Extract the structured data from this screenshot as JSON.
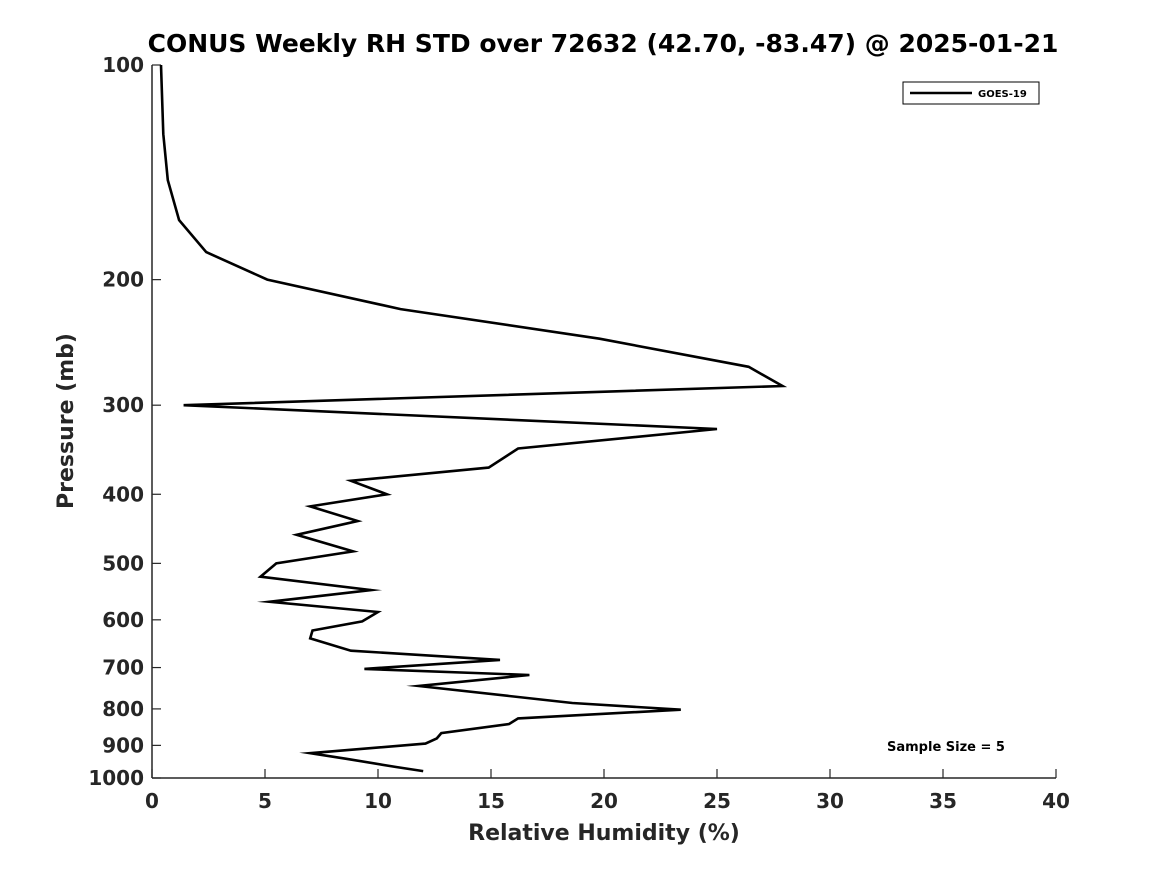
{
  "chart_data": {
    "type": "line",
    "title": "CONUS Weekly RH STD over 72632 (42.70, -83.47) @ 2025-01-21",
    "xlabel": "Relative Humidity (%)",
    "ylabel": "Pressure (mb)",
    "xlim": [
      0,
      40
    ],
    "ylim": [
      100,
      1000
    ],
    "yscale": "log",
    "y_reversed": true,
    "grid": false,
    "legend_position": "top-right",
    "x_ticks": [
      0,
      5,
      10,
      15,
      20,
      25,
      30,
      35,
      40
    ],
    "x_tick_labels": [
      "0",
      "5",
      "10",
      "15",
      "20",
      "25",
      "30",
      "35",
      "40"
    ],
    "y_ticks": [
      100,
      200,
      300,
      400,
      500,
      600,
      700,
      800,
      900,
      1000
    ],
    "y_tick_labels": [
      "100",
      "200",
      "300",
      "400",
      "500",
      "600",
      "700",
      "800",
      "900",
      "1000"
    ],
    "series": [
      {
        "name": "GOES-19",
        "color": "#000000",
        "x": [
          0.4,
          0.5,
          0.7,
          1.2,
          2.4,
          5.1,
          11.0,
          19.8,
          26.4,
          27.9,
          1.4,
          25.0,
          16.2,
          14.9,
          8.8,
          10.4,
          7.0,
          9.1,
          6.4,
          8.9,
          5.5,
          4.8,
          9.7,
          5.2,
          10.0,
          9.3,
          7.1,
          7.0,
          8.8,
          15.4,
          9.4,
          16.7,
          11.8,
          18.6,
          23.4,
          16.2,
          15.8,
          12.8,
          12.6,
          12.1,
          7.0,
          8.6,
          10.8,
          12.0
        ],
        "y": [
          100,
          125,
          145,
          165,
          183,
          200,
          220,
          242,
          265,
          282,
          300,
          324,
          345,
          367,
          383,
          400,
          416,
          436,
          456,
          481,
          500,
          522,
          545,
          566,
          585,
          603,
          621,
          637,
          663,
          683,
          703,
          717,
          743,
          785,
          802,
          825,
          840,
          865,
          880,
          895,
          923,
          940,
          965,
          978
        ]
      }
    ],
    "annotations": [
      "Sample Size = 5"
    ]
  }
}
